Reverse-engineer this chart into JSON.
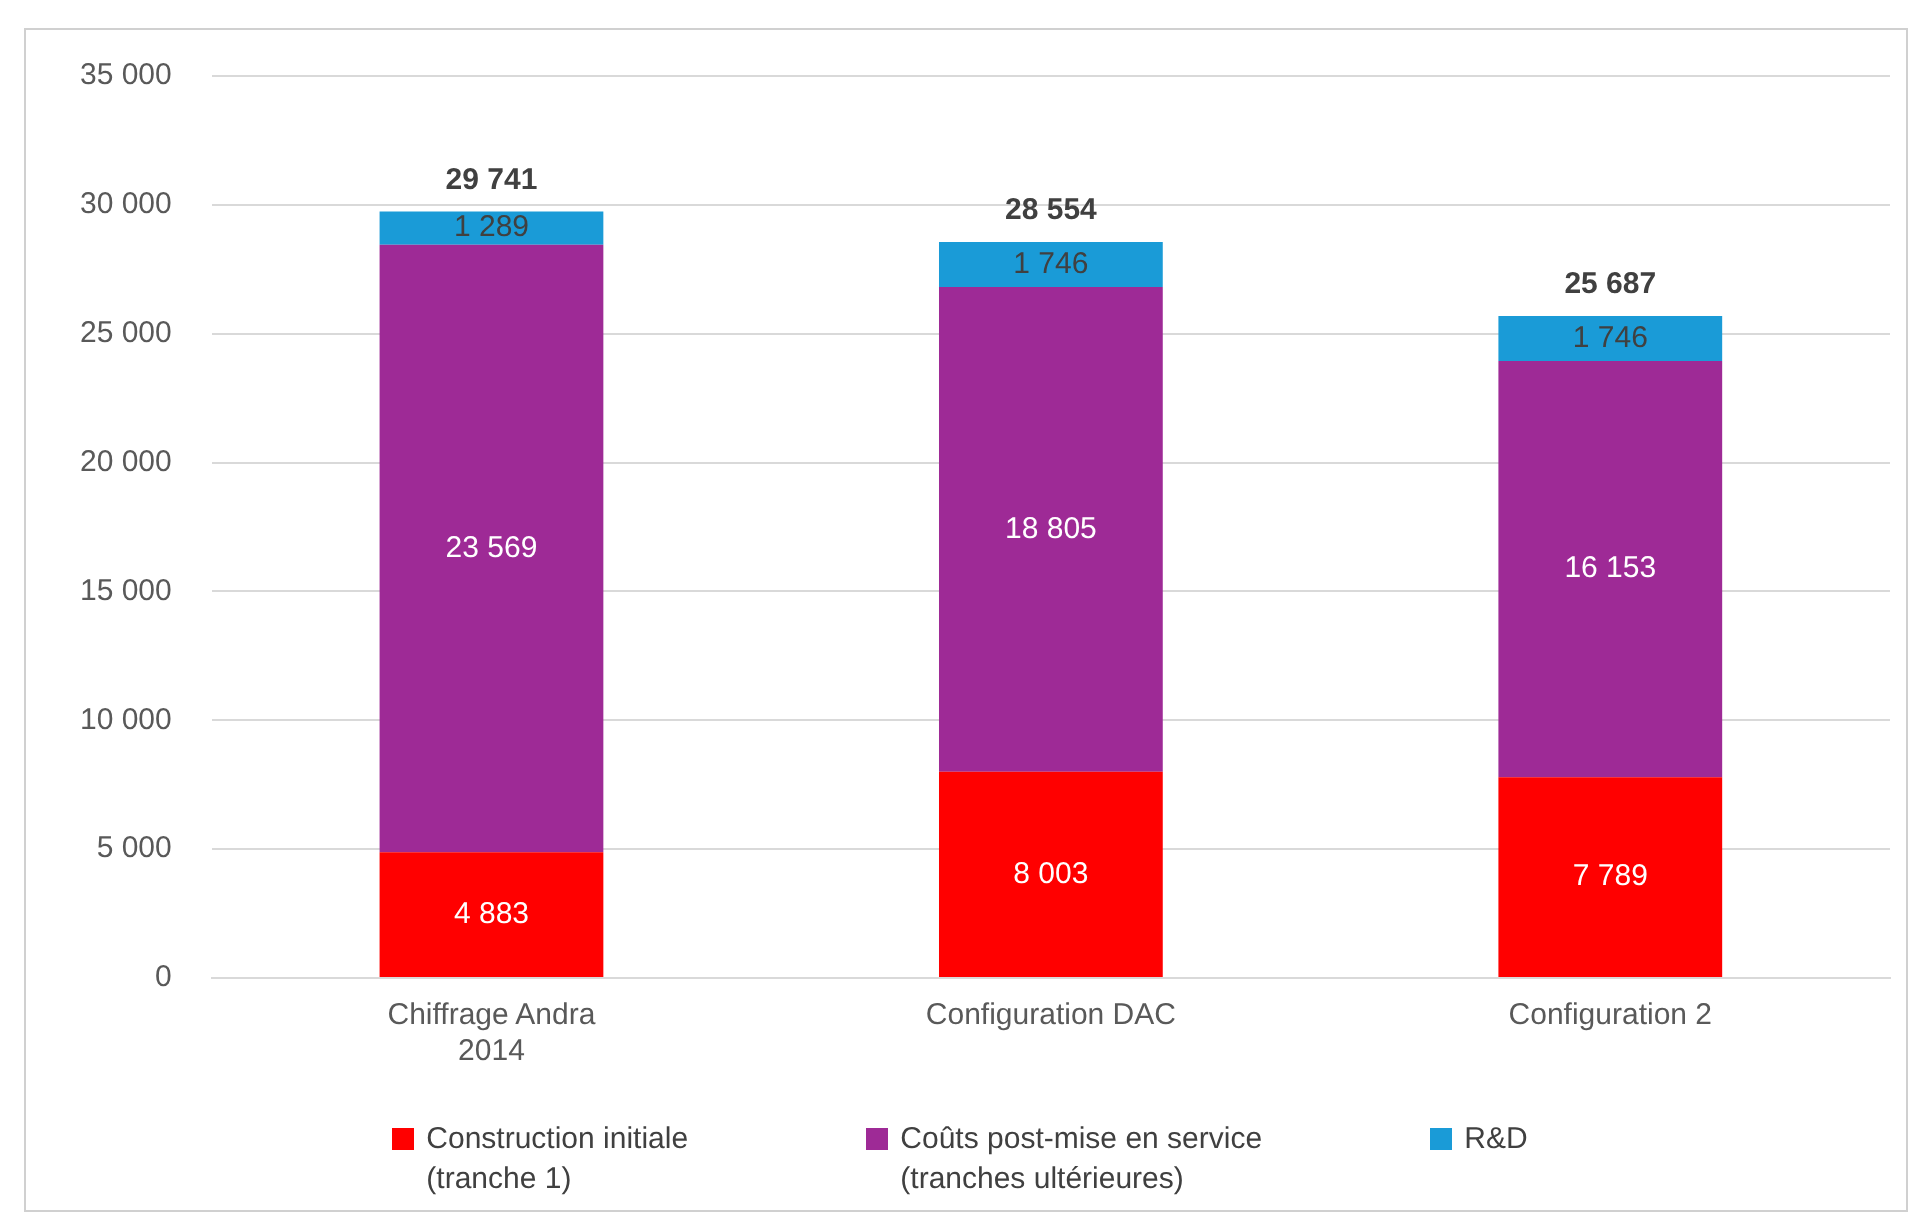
{
  "chart_data": {
    "type": "bar",
    "stacked": true,
    "categories": [
      "Chiffrage Andra 2014",
      "Configuration DAC",
      "Configuration 2"
    ],
    "series": [
      {
        "name": "Construction initiale (tranche 1)",
        "color": "#ff0000",
        "values": [
          4883,
          8003,
          7789
        ],
        "value_labels": [
          "4 883",
          "8 003",
          "7 789"
        ]
      },
      {
        "name": "Coûts post-mise en service (tranches ultérieures)",
        "color": "#9e2a96",
        "values": [
          23569,
          18805,
          16153
        ],
        "value_labels": [
          "23 569",
          "18 805",
          "16 153"
        ]
      },
      {
        "name": "R&D",
        "color": "#1a9bd7",
        "values": [
          1289,
          1746,
          1746
        ],
        "value_labels": [
          "1 289",
          "1 746",
          "1 746"
        ]
      }
    ],
    "totals": [
      "29 741",
      "28 554",
      "25 687"
    ],
    "ylim": [
      0,
      35000
    ],
    "yticks": [
      0,
      {
        "value": 5000,
        "label": "5 000"
      },
      {
        "value": 10000,
        "label": "10 000"
      },
      {
        "value": 15000,
        "label": "15 000"
      },
      {
        "value": 20000,
        "label": "20 000"
      },
      {
        "value": 25000,
        "label": "25 000"
      },
      {
        "value": 30000,
        "label": "30 000"
      },
      {
        "value": 35000,
        "label": "35 000"
      }
    ],
    "grid": "y",
    "legend": "bottom"
  }
}
